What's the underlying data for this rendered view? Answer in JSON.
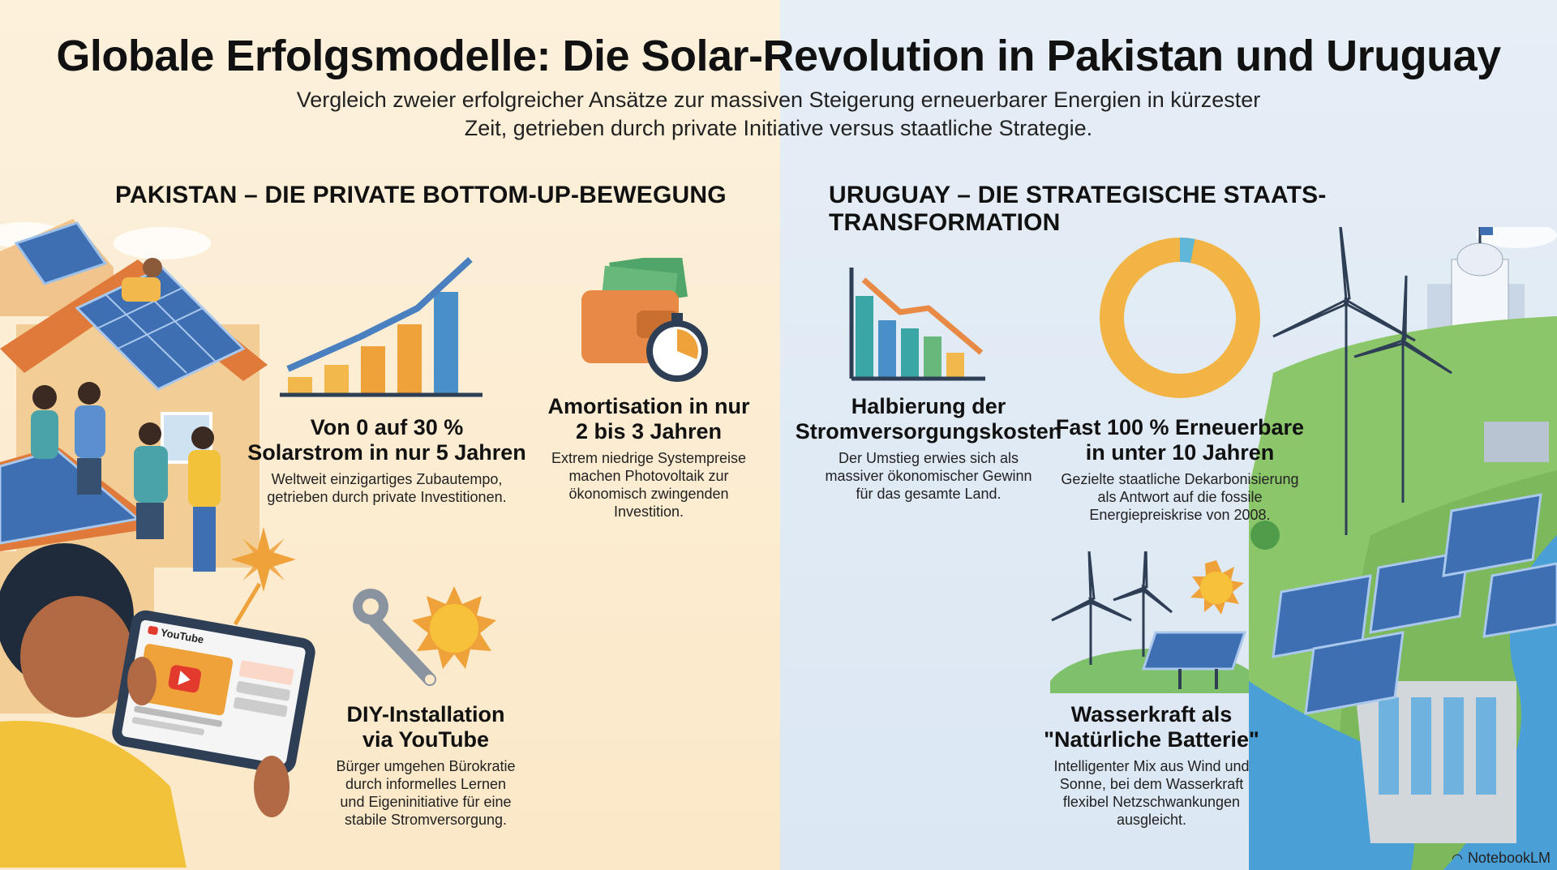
{
  "title": "Globale Erfolgsmodelle: Die Solar-Revolution in Pakistan und Uruguay",
  "subtitle_line1": "Vergleich zweier erfolgreicher Ansätze zur massiven Steigerung erneuerbarer Energien in kürzester",
  "subtitle_line2": "Zeit, getrieben durch private Initiative versus staatliche Strategie.",
  "pakistan": {
    "heading": "PAKISTAN – DIE PRIVATE BOTTOM-UP-BEWEGUNG",
    "cards": [
      {
        "title1": "Von 0 auf 30 %",
        "title2": "Solarstrom in nur 5 Jahren",
        "desc1": "Weltweit einzigartiges Zubautempo,",
        "desc2": "getrieben durch private Investitionen."
      },
      {
        "title1": "Amortisation in nur",
        "title2": "2 bis 3 Jahren",
        "desc1": "Extrem niedrige Systempreise",
        "desc2": "machen Photovoltaik zur",
        "desc3": "ökonomisch zwingenden",
        "desc4": "Investition."
      },
      {
        "title1": "DIY-Installation",
        "title2": "via YouTube",
        "desc1": "Bürger umgehen Bürokratie",
        "desc2": "durch informelles Lernen",
        "desc3": "und Eigeninitiative für eine",
        "desc4": "stabile Stromversorgung."
      }
    ],
    "youtube_label": "YouTube"
  },
  "uruguay": {
    "heading": "URUGUAY – DIE STRATEGISCHE STAATS-TRANSFORMATION",
    "cards": [
      {
        "title1": "Halbierung der",
        "title2": "Stromversorgungskosten",
        "desc1": "Der Umstieg erwies sich als",
        "desc2": "massiver ökonomischer Gewinn",
        "desc3": "für das gesamte Land."
      },
      {
        "title1": "Fast 100 % Erneuerbare",
        "title2": "in unter 10 Jahren",
        "desc1": "Gezielte staatliche Dekarbonisierung",
        "desc2": "als Antwort auf die fossile",
        "desc3": "Energiepreiskrise von 2008."
      },
      {
        "title1": "Wasserkraft als",
        "title2": "\"Natürliche Batterie\"",
        "desc1": "Intelligenter Mix aus Wind und",
        "desc2": "Sonne, bei dem Wasserkraft",
        "desc3": "flexibel Netzschwankungen",
        "desc4": "ausgleicht."
      }
    ],
    "donut_share": 0.97
  },
  "brand": "NotebookLM",
  "colors": {
    "left_bg": "#fbe8c8",
    "right_bg": "#dbe7f3",
    "solar_blue": "#3f6fb3",
    "orange": "#f0a23a",
    "teal": "#3aa6a6"
  }
}
